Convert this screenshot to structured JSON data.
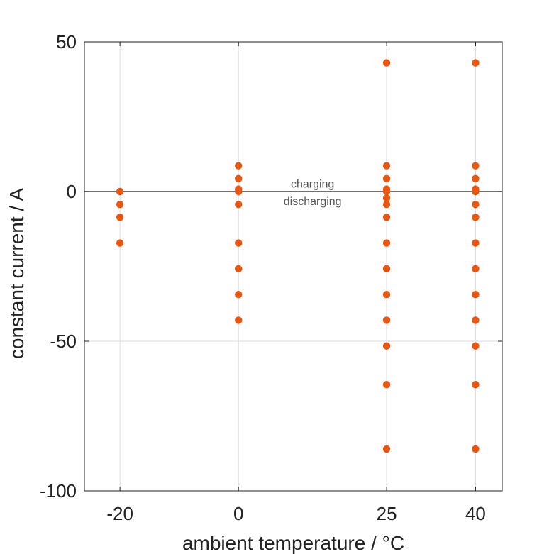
{
  "chart_data": {
    "type": "scatter",
    "title": "",
    "xlabel": "ambient temperature / °C",
    "ylabel": "constant current / A",
    "xlim": [
      -26,
      44.5
    ],
    "ylim": [
      -100,
      50
    ],
    "xticks": [
      -20,
      0,
      25,
      40
    ],
    "yticks": [
      -100,
      -50,
      0,
      50
    ],
    "grid": true,
    "legend": "none",
    "colors": {
      "marker": "#e8560f",
      "zero_line": "#444444",
      "grid": "#dddddd",
      "axis": "#222222"
    },
    "annotations": [
      {
        "text": "charging",
        "x": 12.5,
        "y": 2.5
      },
      {
        "text": "discharging",
        "x": 12.5,
        "y": -3.3
      }
    ],
    "series": [
      {
        "points": [
          {
            "x": -20,
            "y": 0
          },
          {
            "x": -20,
            "y": -4.3
          },
          {
            "x": -20,
            "y": -8.6
          },
          {
            "x": -20,
            "y": -17.2
          },
          {
            "x": 0,
            "y": 8.6
          },
          {
            "x": 0,
            "y": 4.3
          },
          {
            "x": 0,
            "y": 0.8
          },
          {
            "x": 0,
            "y": 0
          },
          {
            "x": 0,
            "y": -4.3
          },
          {
            "x": 0,
            "y": -17.2
          },
          {
            "x": 0,
            "y": -25.8
          },
          {
            "x": 0,
            "y": -34.4
          },
          {
            "x": 0,
            "y": -43
          },
          {
            "x": 25,
            "y": 43
          },
          {
            "x": 25,
            "y": 8.6
          },
          {
            "x": 25,
            "y": 4.3
          },
          {
            "x": 25,
            "y": 0.8
          },
          {
            "x": 25,
            "y": 0
          },
          {
            "x": 25,
            "y": -2.2
          },
          {
            "x": 25,
            "y": -4.3
          },
          {
            "x": 25,
            "y": -8.6
          },
          {
            "x": 25,
            "y": -17.2
          },
          {
            "x": 25,
            "y": -25.8
          },
          {
            "x": 25,
            "y": -34.4
          },
          {
            "x": 25,
            "y": -43
          },
          {
            "x": 25,
            "y": -51.6
          },
          {
            "x": 25,
            "y": -64.5
          },
          {
            "x": 25,
            "y": -86
          },
          {
            "x": 40,
            "y": 43
          },
          {
            "x": 40,
            "y": 8.6
          },
          {
            "x": 40,
            "y": 4.3
          },
          {
            "x": 40,
            "y": 0.8
          },
          {
            "x": 40,
            "y": 0
          },
          {
            "x": 40,
            "y": -4.3
          },
          {
            "x": 40,
            "y": -8.6
          },
          {
            "x": 40,
            "y": -17.2
          },
          {
            "x": 40,
            "y": -25.8
          },
          {
            "x": 40,
            "y": -34.4
          },
          {
            "x": 40,
            "y": -43
          },
          {
            "x": 40,
            "y": -51.6
          },
          {
            "x": 40,
            "y": -64.5
          },
          {
            "x": 40,
            "y": -86
          }
        ]
      }
    ]
  }
}
